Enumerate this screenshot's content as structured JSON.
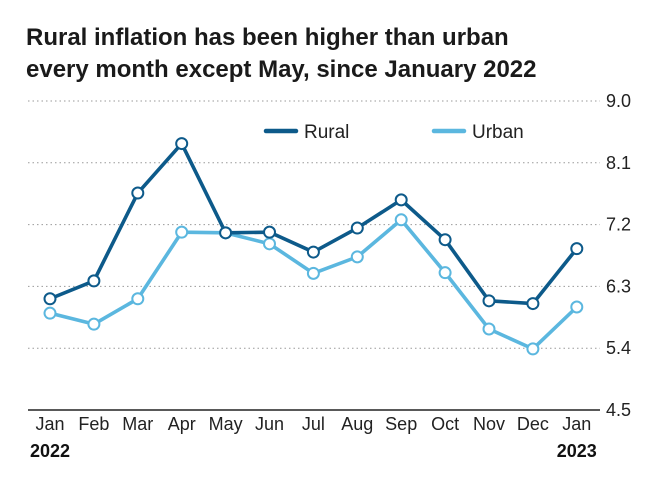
{
  "title_lines": [
    "Rural inflation has been higher than urban",
    "every month except May, since January 2022"
  ],
  "chart_data": {
    "type": "line",
    "title": "Rural inflation has been higher than urban every month except May, since January 2022",
    "categories": [
      "Jan",
      "Feb",
      "Mar",
      "Apr",
      "May",
      "Jun",
      "Jul",
      "Aug",
      "Sep",
      "Oct",
      "Nov",
      "Dec",
      "Jan"
    ],
    "year_labels": [
      {
        "index": 0,
        "label": "2022"
      },
      {
        "index": 12,
        "label": "2023"
      }
    ],
    "series": [
      {
        "name": "Rural",
        "color": "#0d5a8a",
        "values": [
          6.12,
          6.38,
          7.66,
          8.38,
          7.08,
          7.09,
          6.8,
          7.15,
          7.56,
          6.98,
          6.09,
          6.05,
          6.85
        ]
      },
      {
        "name": "Urban",
        "color": "#5bb7df",
        "values": [
          5.91,
          5.75,
          6.12,
          7.09,
          7.08,
          6.92,
          6.49,
          6.73,
          7.27,
          6.5,
          5.68,
          5.39,
          6.0
        ]
      }
    ],
    "yticks": [
      "9.0",
      "8.1",
      "7.2",
      "6.3",
      "5.4",
      "4.5"
    ],
    "ylim": [
      4.5,
      9.0
    ],
    "y_axis_position": "right",
    "grid": "horizontal dotted",
    "legend_placement": "top-center"
  }
}
